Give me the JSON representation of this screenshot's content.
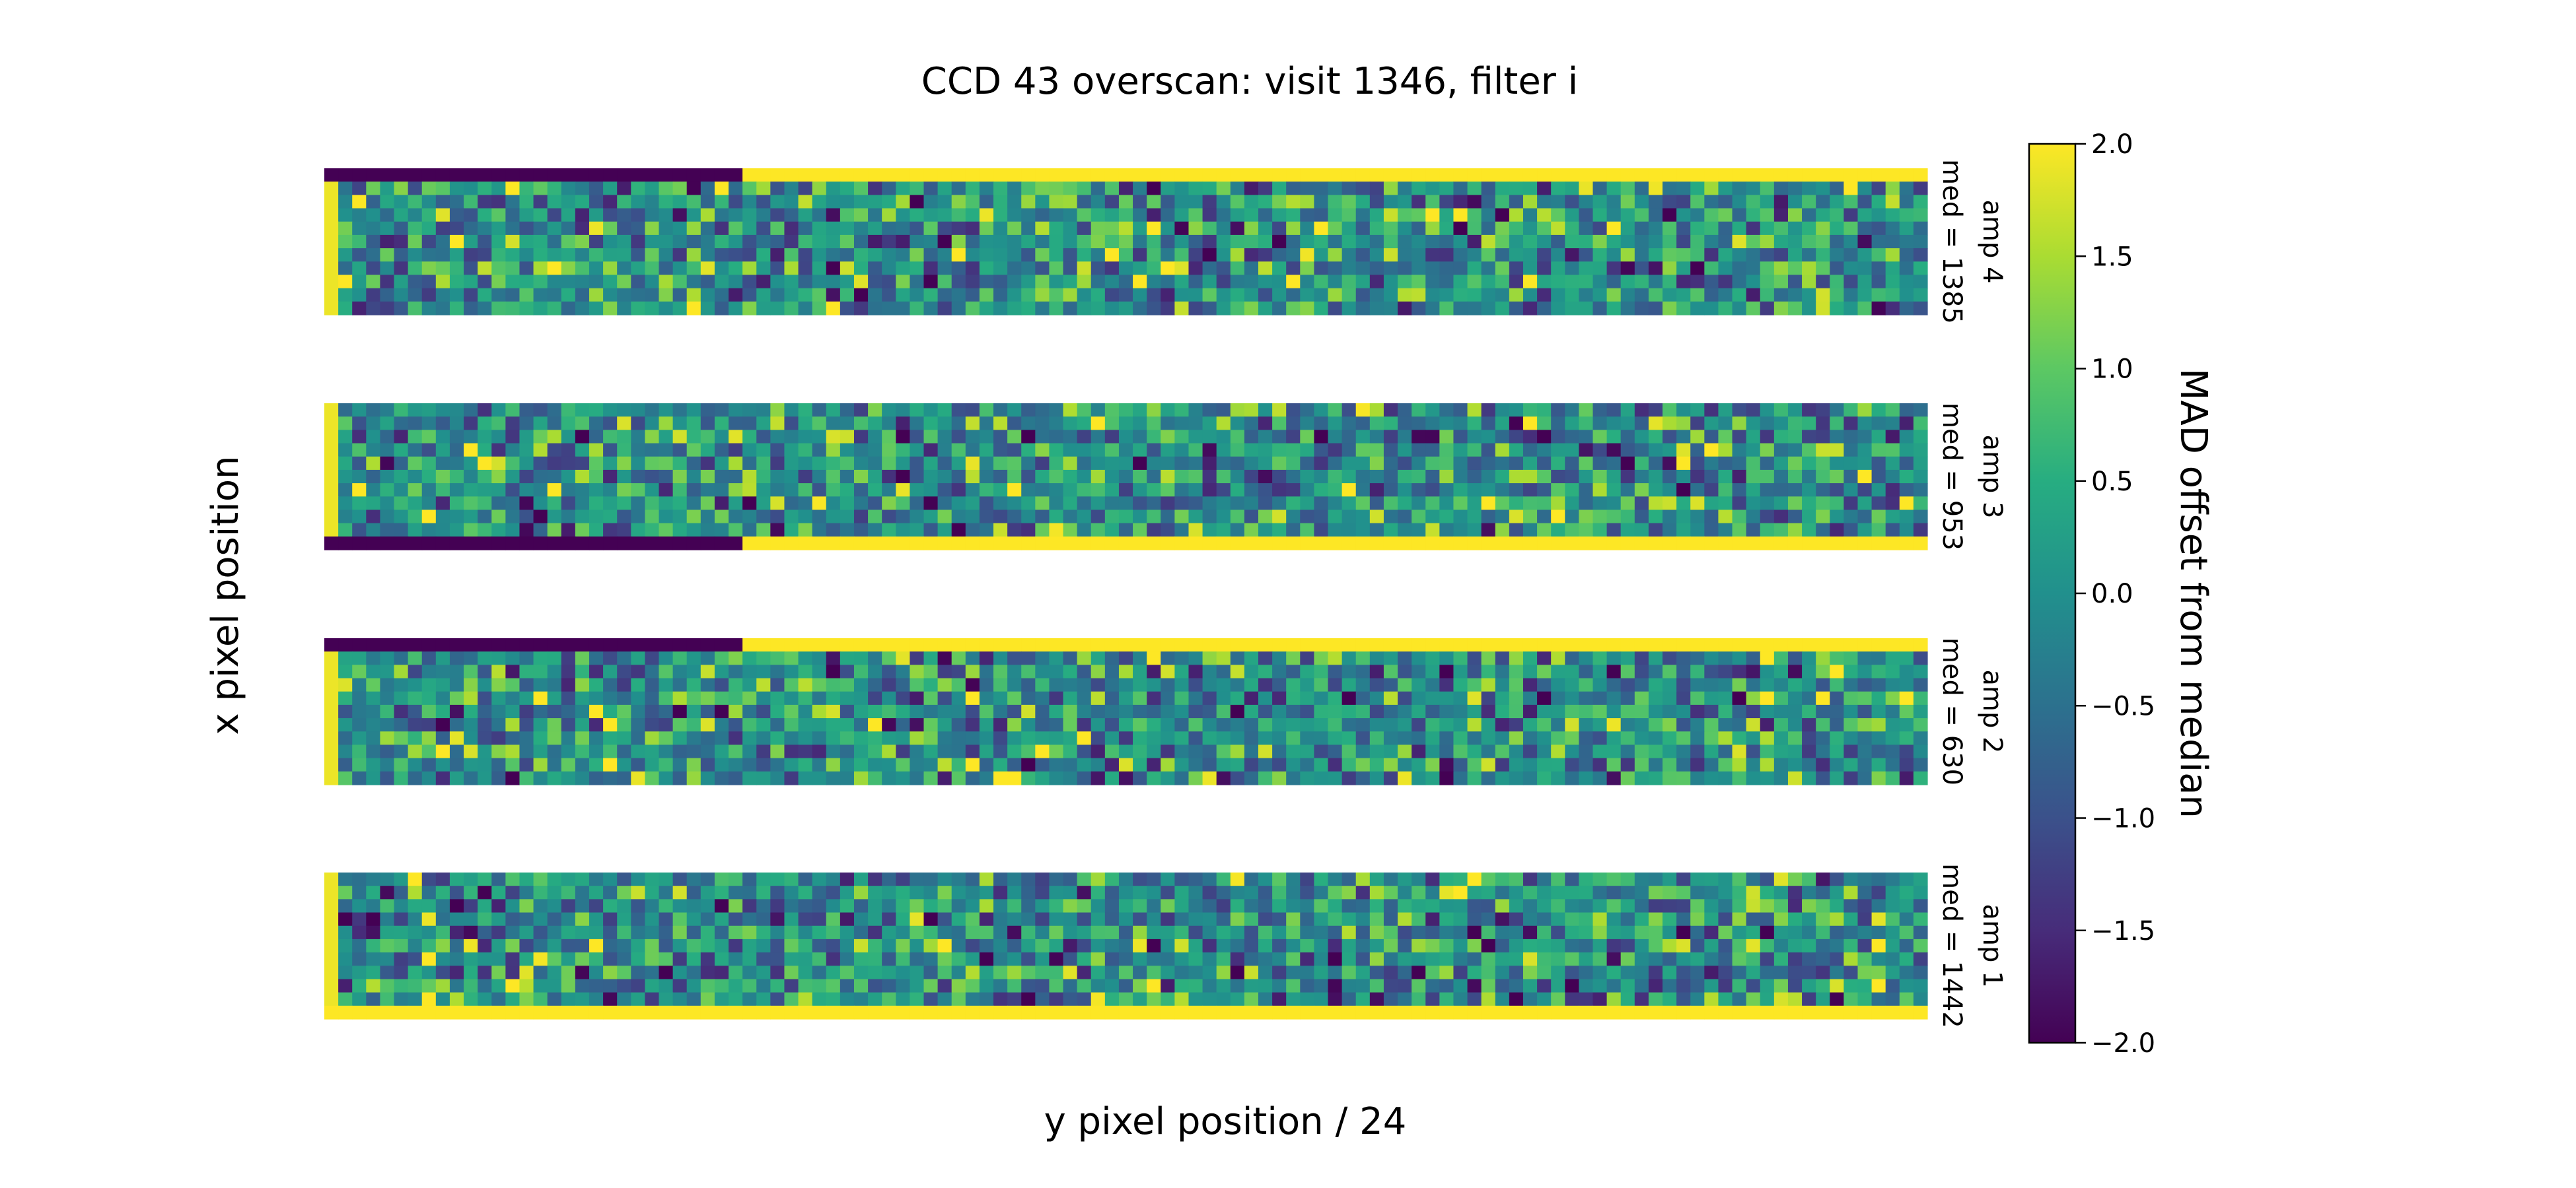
{
  "chart_data": {
    "type": "heatmap",
    "title": "CCD 43 overscan: visit 1346, filter i",
    "xlabel": "y pixel position / 24",
    "ylabel": "x pixel position",
    "colorbar": {
      "label": "MAD offset from median",
      "range": [
        -2.0,
        2.0
      ],
      "ticks": [
        2.0,
        1.5,
        1.0,
        0.5,
        0.0,
        -0.5,
        -1.0,
        -1.5,
        -2.0
      ],
      "tick_labels": [
        "2.0",
        "1.5",
        "1.0",
        "0.5",
        "0.0",
        "−0.5",
        "−1.0",
        "−1.5",
        "−2.0"
      ],
      "colormap": "viridis"
    },
    "grid_shape": {
      "columns": 115,
      "rows": 11
    },
    "panels": [
      {
        "amp": "amp 4",
        "median": "med = 1385",
        "saturated_edge": "top",
        "low_edge_fraction": 0.265,
        "low_edge_value": -2.0,
        "high_edge_value": 2.0
      },
      {
        "amp": "amp 3",
        "median": "med = 953",
        "saturated_edge": "bottom",
        "low_edge_fraction": 0.265,
        "low_edge_value": -2.0,
        "high_edge_value": 2.0
      },
      {
        "amp": "amp 2",
        "median": "med = 630",
        "saturated_edge": "top",
        "low_edge_fraction": 0.265,
        "low_edge_value": -2.0,
        "high_edge_value": 2.0
      },
      {
        "amp": "amp 1",
        "median": "med = 1442",
        "saturated_edge": "bottom",
        "low_edge_fraction": 0.0,
        "low_edge_value": -2.0,
        "high_edge_value": 2.0
      }
    ],
    "interior_value_distribution": "noise",
    "interior_std": 0.9
  }
}
